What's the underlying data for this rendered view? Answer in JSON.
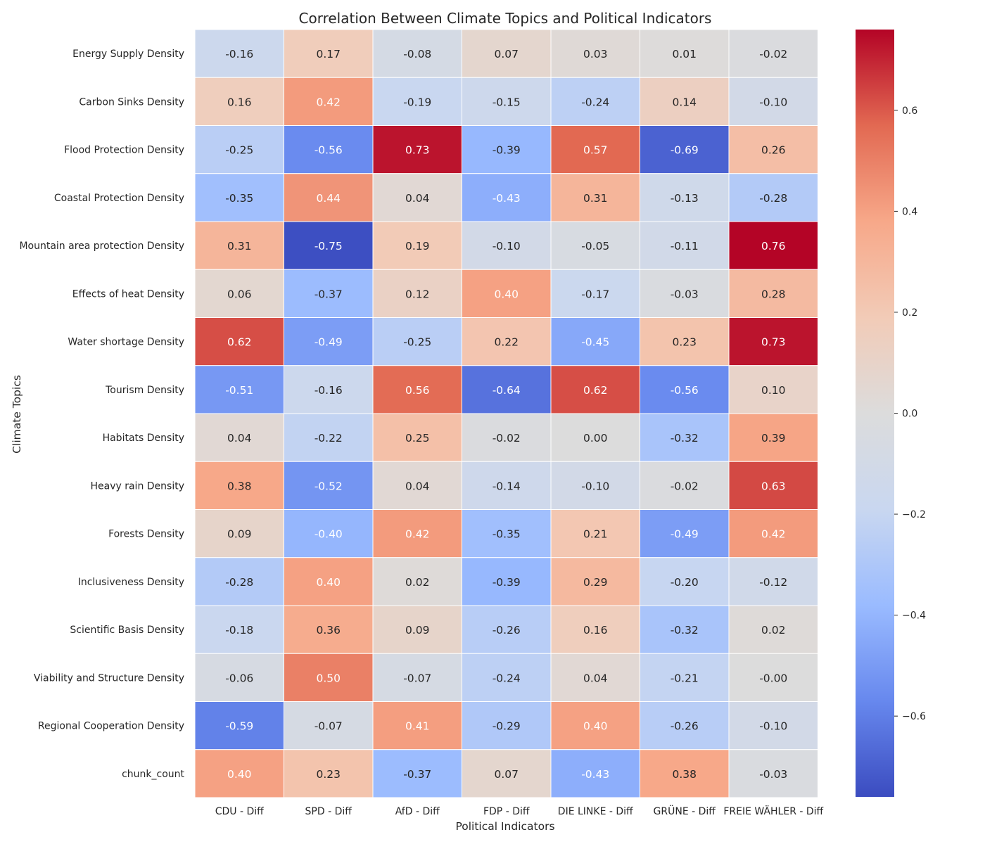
{
  "chart_data": {
    "type": "heatmap",
    "title": "Correlation Between Climate Topics and Political Indicators",
    "xlabel": "Political Indicators",
    "ylabel": "Climate Topics",
    "columns": [
      "CDU - Diff",
      "SPD - Diff",
      "AfD - Diff",
      "FDP - Diff",
      "DIE LINKE - Diff",
      "GRÜNE - Diff",
      "FREIE WÄHLER - Diff"
    ],
    "rows": [
      "Energy Supply Density",
      "Carbon Sinks Density",
      "Flood Protection Density",
      "Coastal Protection Density",
      "Mountain area protection Density",
      "Effects of heat Density",
      "Water shortage Density",
      "Tourism Density",
      "Habitats Density",
      "Heavy rain Density",
      "Forests Density",
      "Inclusiveness Density",
      "Scientific Basis Density",
      "Viability and Structure Density",
      "Regional Cooperation Density",
      "chunk_count"
    ],
    "values": [
      [
        -0.16,
        0.17,
        -0.08,
        0.07,
        0.03,
        0.01,
        -0.02
      ],
      [
        0.16,
        0.42,
        -0.19,
        -0.15,
        -0.24,
        0.14,
        -0.1
      ],
      [
        -0.25,
        -0.56,
        0.73,
        -0.39,
        0.57,
        -0.69,
        0.26
      ],
      [
        -0.35,
        0.44,
        0.04,
        -0.43,
        0.31,
        -0.13,
        -0.28
      ],
      [
        0.31,
        -0.75,
        0.19,
        -0.1,
        -0.05,
        -0.11,
        0.76
      ],
      [
        0.06,
        -0.37,
        0.12,
        0.4,
        -0.17,
        -0.03,
        0.28
      ],
      [
        0.62,
        -0.49,
        -0.25,
        0.22,
        -0.45,
        0.23,
        0.73
      ],
      [
        -0.51,
        -0.16,
        0.56,
        -0.64,
        0.62,
        -0.56,
        0.1
      ],
      [
        0.04,
        -0.22,
        0.25,
        -0.02,
        0.0,
        -0.32,
        0.39
      ],
      [
        0.38,
        -0.52,
        0.04,
        -0.14,
        -0.1,
        -0.02,
        0.63
      ],
      [
        0.09,
        -0.4,
        0.42,
        -0.35,
        0.21,
        -0.49,
        0.42
      ],
      [
        -0.28,
        0.4,
        0.02,
        -0.39,
        0.29,
        -0.2,
        -0.12
      ],
      [
        -0.18,
        0.36,
        0.09,
        -0.26,
        0.16,
        -0.32,
        0.02
      ],
      [
        -0.06,
        0.5,
        -0.07,
        -0.24,
        0.04,
        -0.21,
        -0.0
      ],
      [
        -0.59,
        -0.07,
        0.41,
        -0.29,
        0.4,
        -0.26,
        -0.1
      ],
      [
        0.4,
        0.23,
        -0.37,
        0.07,
        -0.43,
        0.38,
        -0.03
      ]
    ],
    "value_labels": [
      [
        "-0.16",
        "0.17",
        "-0.08",
        "0.07",
        "0.03",
        "0.01",
        "-0.02"
      ],
      [
        "0.16",
        "0.42",
        "-0.19",
        "-0.15",
        "-0.24",
        "0.14",
        "-0.10"
      ],
      [
        "-0.25",
        "-0.56",
        "0.73",
        "-0.39",
        "0.57",
        "-0.69",
        "0.26"
      ],
      [
        "-0.35",
        "0.44",
        "0.04",
        "-0.43",
        "0.31",
        "-0.13",
        "-0.28"
      ],
      [
        "0.31",
        "-0.75",
        "0.19",
        "-0.10",
        "-0.05",
        "-0.11",
        "0.76"
      ],
      [
        "0.06",
        "-0.37",
        "0.12",
        "0.40",
        "-0.17",
        "-0.03",
        "0.28"
      ],
      [
        "0.62",
        "-0.49",
        "-0.25",
        "0.22",
        "-0.45",
        "0.23",
        "0.73"
      ],
      [
        "-0.51",
        "-0.16",
        "0.56",
        "-0.64",
        "0.62",
        "-0.56",
        "0.10"
      ],
      [
        "0.04",
        "-0.22",
        "0.25",
        "-0.02",
        "0.00",
        "-0.32",
        "0.39"
      ],
      [
        "0.38",
        "-0.52",
        "0.04",
        "-0.14",
        "-0.10",
        "-0.02",
        "0.63"
      ],
      [
        "0.09",
        "-0.40",
        "0.42",
        "-0.35",
        "0.21",
        "-0.49",
        "0.42"
      ],
      [
        "-0.28",
        "0.40",
        "0.02",
        "-0.39",
        "0.29",
        "-0.20",
        "-0.12"
      ],
      [
        "-0.18",
        "0.36",
        "0.09",
        "-0.26",
        "0.16",
        "-0.32",
        "0.02"
      ],
      [
        "-0.06",
        "0.50",
        "-0.07",
        "-0.24",
        "0.04",
        "-0.21",
        "-0.00"
      ],
      [
        "-0.59",
        "-0.07",
        "0.41",
        "-0.29",
        "0.40",
        "-0.26",
        "-0.10"
      ],
      [
        "0.40",
        "0.23",
        "-0.37",
        "0.07",
        "-0.43",
        "0.38",
        "-0.03"
      ]
    ],
    "colormap": "coolwarm",
    "color_range": [
      -0.76,
      0.76
    ],
    "colorbar_ticks": [
      0.6,
      0.4,
      0.2,
      0.0,
      -0.2,
      -0.4,
      -0.6
    ],
    "colorbar_tick_labels": [
      "0.6",
      "0.4",
      "0.2",
      "0.0",
      "−0.2",
      "−0.4",
      "−0.6"
    ],
    "colorbar_position": "right",
    "colormap_stops": [
      "#3b4cc0",
      "#6788ee",
      "#9abbff",
      "#c9d7f0",
      "#dcdcdc",
      "#f2cbb7",
      "#f7a889",
      "#e26952",
      "#b40426"
    ],
    "grid_color": "#ffffff"
  }
}
